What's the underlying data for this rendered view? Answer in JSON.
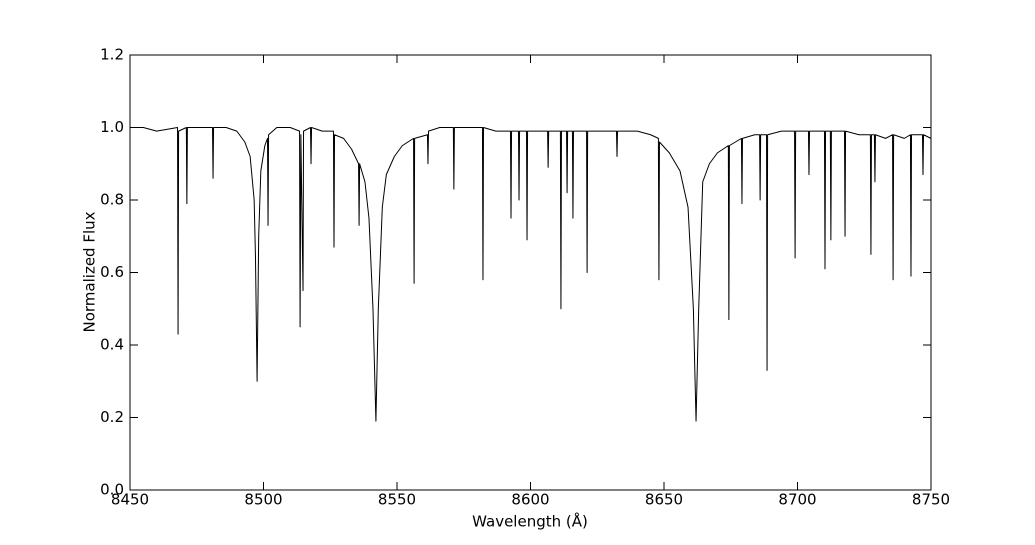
{
  "chart_data": {
    "type": "line",
    "xlabel": "Wavelength (Å)",
    "ylabel": "Normalized Flux",
    "xlim": [
      8450,
      8750
    ],
    "ylim": [
      0,
      1.2
    ],
    "xticks": [
      8450,
      8500,
      8550,
      8600,
      8650,
      8700,
      8750
    ],
    "yticks": [
      {
        "value": 0,
        "label": "0.0"
      },
      0.2,
      0.4,
      0.6,
      0.8,
      {
        "value": 1,
        "label": "1.0"
      },
      1.2
    ],
    "grid": false,
    "series": [
      {
        "color": "#000000",
        "x": [
          8450,
          8455,
          8460,
          8467.8,
          8468,
          8468.2,
          8471.1,
          8471.3,
          8471.5,
          8476,
          8480.9,
          8481.1,
          8481.3,
          8486,
          8490,
          8493,
          8495,
          8496.5,
          8497,
          8497.6,
          8498.2,
          8499,
          8500.5,
          8501.5,
          8501.7,
          8501.9,
          8505,
          8510,
          8513.5,
          8513.7,
          8514,
          8514.8,
          8515,
          8517.6,
          8517.8,
          8518,
          8522,
          8526.2,
          8526.4,
          8526.6,
          8530,
          8533,
          8535.6,
          8535.8,
          8536,
          8538,
          8539.5,
          8541,
          8542.1,
          8543,
          8544.5,
          8546,
          8549,
          8552,
          8556.2,
          8556.4,
          8556.6,
          8561.4,
          8561.6,
          8561.8,
          8566,
          8571.1,
          8571.3,
          8571.5,
          8577,
          8582,
          8582.2,
          8582.4,
          8587,
          8592.5,
          8592.7,
          8592.9,
          8595.5,
          8595.7,
          8595.9,
          8598.5,
          8598.7,
          8598.9,
          8603,
          8606.4,
          8606.6,
          8606.8,
          8611.2,
          8611.4,
          8611.6,
          8613.5,
          8613.7,
          8613.9,
          8615.7,
          8615.9,
          8616.1,
          8621,
          8621.2,
          8621.4,
          8626,
          8632.2,
          8632.4,
          8632.6,
          8640,
          8645,
          8647.9,
          8648.1,
          8648.3,
          8652,
          8656,
          8659,
          8661,
          8662,
          8663,
          8664.5,
          8667,
          8670,
          8674.1,
          8674.3,
          8674.5,
          8679,
          8679.2,
          8679.4,
          8684,
          8685.8,
          8686,
          8686.2,
          8688.4,
          8688.6,
          8688.8,
          8694,
          8698.9,
          8699.1,
          8699.3,
          8704.1,
          8704.3,
          8704.5,
          8710.1,
          8710.3,
          8710.5,
          8712.3,
          8712.5,
          8712.7,
          8717.6,
          8717.8,
          8718,
          8723,
          8727.3,
          8727.5,
          8727.7,
          8728.8,
          8729,
          8729.2,
          8733,
          8735.6,
          8735.8,
          8736,
          8740,
          8742.3,
          8742.5,
          8742.7,
          8746.8,
          8747,
          8747.2,
          8750
        ],
        "values": [
          1.0,
          1.0,
          0.99,
          1.0,
          0.43,
          0.99,
          1.0,
          0.79,
          1.0,
          1.0,
          1.0,
          0.86,
          1.0,
          1.0,
          0.99,
          0.96,
          0.92,
          0.8,
          0.64,
          0.3,
          0.7,
          0.88,
          0.95,
          0.97,
          0.73,
          0.98,
          1.0,
          1.0,
          0.99,
          0.45,
          0.98,
          0.55,
          0.99,
          1.0,
          0.9,
          1.0,
          0.99,
          0.99,
          0.67,
          0.98,
          0.97,
          0.94,
          0.9,
          0.73,
          0.9,
          0.85,
          0.75,
          0.5,
          0.19,
          0.5,
          0.78,
          0.87,
          0.92,
          0.95,
          0.97,
          0.57,
          0.97,
          0.98,
          0.9,
          0.99,
          1.0,
          1.0,
          0.83,
          1.0,
          1.0,
          1.0,
          0.58,
          1.0,
          0.99,
          0.99,
          0.75,
          0.99,
          0.99,
          0.8,
          0.99,
          0.99,
          0.69,
          0.99,
          0.99,
          0.99,
          0.89,
          0.99,
          0.99,
          0.5,
          0.99,
          0.99,
          0.82,
          0.99,
          0.99,
          0.75,
          0.99,
          0.99,
          0.6,
          0.99,
          0.99,
          0.99,
          0.92,
          0.99,
          0.99,
          0.98,
          0.97,
          0.58,
          0.96,
          0.93,
          0.88,
          0.78,
          0.5,
          0.19,
          0.5,
          0.85,
          0.9,
          0.93,
          0.95,
          0.47,
          0.95,
          0.97,
          0.79,
          0.97,
          0.98,
          0.98,
          0.8,
          0.98,
          0.98,
          0.33,
          0.98,
          0.99,
          0.99,
          0.64,
          0.99,
          0.99,
          0.87,
          0.99,
          0.99,
          0.61,
          0.99,
          0.99,
          0.69,
          0.99,
          0.99,
          0.7,
          0.99,
          0.98,
          0.98,
          0.65,
          0.98,
          0.98,
          0.85,
          0.98,
          0.97,
          0.98,
          0.58,
          0.98,
          0.97,
          0.98,
          0.59,
          0.98,
          0.98,
          0.87,
          0.98,
          0.97
        ]
      }
    ]
  }
}
